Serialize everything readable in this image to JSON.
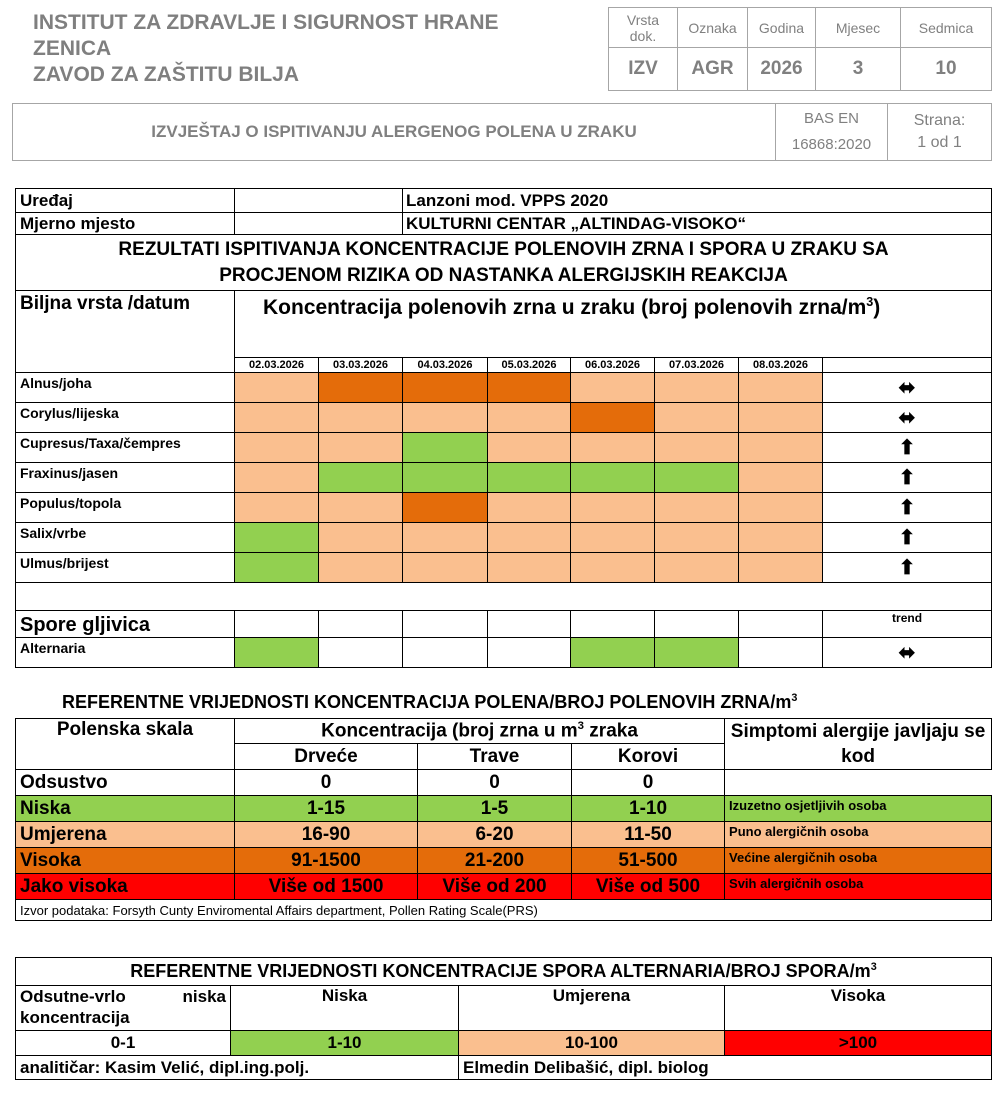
{
  "header": {
    "institute_line1": "INSTITUT ZA ZDRAVLJE I SIGURNOST HRANE",
    "institute_line2": "ZENICA",
    "institute_line3": "ZAVOD ZA ZAŠTITU BILJA",
    "meta_labels": [
      "Vrsta dok.",
      "Oznaka",
      "Godina",
      "Mjesec",
      "Sedmica"
    ],
    "meta_values": [
      "IZV",
      "AGR",
      "2026",
      "3",
      "10"
    ],
    "report_title": "IZVJEŠTAJ O ISPITIVANJU ALERGENOG POLENA U ZRAKU",
    "standard_line1": "BAS EN",
    "standard_line2": "16868:2020",
    "page_label": "Strana:",
    "page_value": "1 od 1"
  },
  "results": {
    "device_label": "Uređaj",
    "device_value": "Lanzoni mod. VPPS 2020",
    "site_label": "Mjerno mjesto",
    "site_value": "KULTURNI CENTAR „ALTINDAG-VISOKO“",
    "title_line1": "REZULTATI ISPITIVANJA KONCENTRACIJE POLENOVIH ZRNA I SPORA U ZRAKU SA",
    "title_line2": "PROCJENOM RIZIKA OD NASTANKA ALERGIJSKIH REAKCIJA",
    "species_header": "Biljna vrsta /datum",
    "concentration_header": "Koncentracija polenovih zrna u zraku (broj polenovih zrna/m",
    "concentration_sup": "3",
    "concentration_close": ")",
    "dates": [
      "02.03.2026",
      "03.03.2026",
      "04.03.2026",
      "05.03.2026",
      "06.03.2026",
      "07.03.2026",
      "08.03.2026"
    ],
    "level_colors": {
      "niska": "#92d050",
      "umjerena": "#fabf8f",
      "visoka": "#e46c0a",
      "jako_visoka": "#ff0000"
    },
    "pollen_rows": [
      {
        "name": "Alnus/joha",
        "levels": [
          "umjerena",
          "visoka",
          "visoka",
          "visoka",
          "umjerena",
          "umjerena",
          "umjerena"
        ],
        "trend": "left-right-arrow-icon"
      },
      {
        "name": "Corylus/lijeska",
        "levels": [
          "umjerena",
          "umjerena",
          "umjerena",
          "umjerena",
          "visoka",
          "umjerena",
          "umjerena"
        ],
        "trend": "left-right-arrow-icon"
      },
      {
        "name": "Cupresus/Taxa/čempres",
        "levels": [
          "umjerena",
          "umjerena",
          "niska",
          "umjerena",
          "umjerena",
          "umjerena",
          "umjerena"
        ],
        "trend": "up-arrow-icon"
      },
      {
        "name": "Fraxinus/jasen",
        "levels": [
          "umjerena",
          "niska",
          "niska",
          "niska",
          "niska",
          "niska",
          "umjerena"
        ],
        "trend": "up-arrow-icon"
      },
      {
        "name": "Populus/topola",
        "levels": [
          "umjerena",
          "umjerena",
          "visoka",
          "umjerena",
          "umjerena",
          "umjerena",
          "umjerena"
        ],
        "trend": "up-arrow-icon"
      },
      {
        "name": "Salix/vrbe",
        "levels": [
          "niska",
          "umjerena",
          "umjerena",
          "umjerena",
          "umjerena",
          "umjerena",
          "umjerena"
        ],
        "trend": "up-arrow-icon"
      },
      {
        "name": "Ulmus/brijest",
        "levels": [
          "niska",
          "umjerena",
          "umjerena",
          "umjerena",
          "umjerena",
          "umjerena",
          "umjerena"
        ],
        "trend": "up-arrow-icon"
      }
    ],
    "spores_label": "Spore gljivica",
    "trend_label": "trend",
    "spore_rows": [
      {
        "name": "Alternaria",
        "levels": [
          "niska",
          "",
          "",
          "",
          "niska",
          "niska",
          ""
        ],
        "trend": "left-right-arrow-icon"
      }
    ]
  },
  "pollen_reference": {
    "title": "REFERENTNE VRIJEDNOSTI KONCENTRACIJA POLENA/BROJ POLENOVIH ZRNA/m",
    "title_sup": "3",
    "scale_header": "Polenska skala",
    "conc_header_a": "Koncentracija (broj zrna u m",
    "conc_header_sup": "3",
    "conc_header_b": " zraka",
    "symptoms_header": "Simptomi alergije javljaju se kod",
    "columns": [
      "Drveće",
      "Trave",
      "Korovi"
    ],
    "rows": [
      {
        "level": "Odsustvo",
        "values": [
          "0",
          "0",
          "0"
        ],
        "symptom": "",
        "color": "#ffffff"
      },
      {
        "level": "Niska",
        "values": [
          "1-15",
          "1-5",
          "1-10"
        ],
        "symptom": "Izuzetno osjetljivih osoba",
        "color": "#92d050"
      },
      {
        "level": "Umjerena",
        "values": [
          "16-90",
          "6-20",
          "11-50"
        ],
        "symptom": "Puno alergičnih osoba",
        "color": "#fabf8f"
      },
      {
        "level": "Visoka",
        "values": [
          "91-1500",
          "21-200",
          "51-500"
        ],
        "symptom": "Većine alergičnih osoba",
        "color": "#e46c0a"
      },
      {
        "level": "Jako visoka",
        "values": [
          "Više od 1500",
          "Više od 200",
          "Više od 500"
        ],
        "symptom": "Svih alergičnih osoba",
        "color": "#ff0000"
      }
    ],
    "source": "Izvor podataka: Forsyth Cunty Enviromental Affairs department, Pollen Rating Scale(PRS)"
  },
  "spore_reference": {
    "title": "REFERENTNE VRIJEDNOSTI KONCENTRACIJE SPORA ALTERNARIA/BROJ SPORA/m",
    "title_sup": "3",
    "headers": [
      "Odsutne-vrlo niska koncentracija",
      "Niska",
      "Umjerena",
      "Visoka"
    ],
    "values": [
      "0-1",
      "1-10",
      "10-100",
      ">100"
    ],
    "colors": [
      "#ffffff",
      "#92d050",
      "#fabf8f",
      "#ff0000"
    ],
    "analyst": "analitičar: Kasim Velić,  dipl.ing.polj.",
    "biologist": "Elmedin Delibašić, dipl. biolog"
  }
}
